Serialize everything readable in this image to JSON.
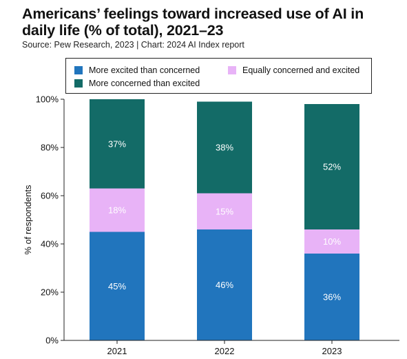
{
  "chart_data": {
    "type": "bar",
    "stacked": true,
    "title": "Americans’ feelings toward increased use of AI in daily life (% of total), 2021–23",
    "subtitle": "Source: Pew Research, 2023 | Chart: 2024 AI Index report",
    "xlabel": "",
    "ylabel": "% of respondents",
    "ylim": [
      0,
      100
    ],
    "yticks": [
      0,
      20,
      40,
      60,
      80,
      100
    ],
    "ytick_labels": [
      "0%",
      "20%",
      "40%",
      "60%",
      "80%",
      "100%"
    ],
    "categories": [
      "2021",
      "2022",
      "2023"
    ],
    "legend_position": "top",
    "series": [
      {
        "name": "More excited than concerned",
        "color": "#2175bd",
        "label_color": "#ffffff",
        "values": [
          45,
          46,
          36
        ],
        "labels": [
          "45%",
          "46%",
          "36%"
        ]
      },
      {
        "name": "Equally concerned and excited",
        "color": "#e8b3f7",
        "label_color": "#ffffff",
        "values": [
          18,
          15,
          10
        ],
        "labels": [
          "18%",
          "15%",
          "10%"
        ]
      },
      {
        "name": "More concerned than excited",
        "color": "#136b67",
        "label_color": "#ffffff",
        "values": [
          37,
          38,
          52
        ],
        "labels": [
          "37%",
          "38%",
          "52%"
        ]
      }
    ],
    "legend_order": [
      0,
      1,
      2
    ]
  }
}
